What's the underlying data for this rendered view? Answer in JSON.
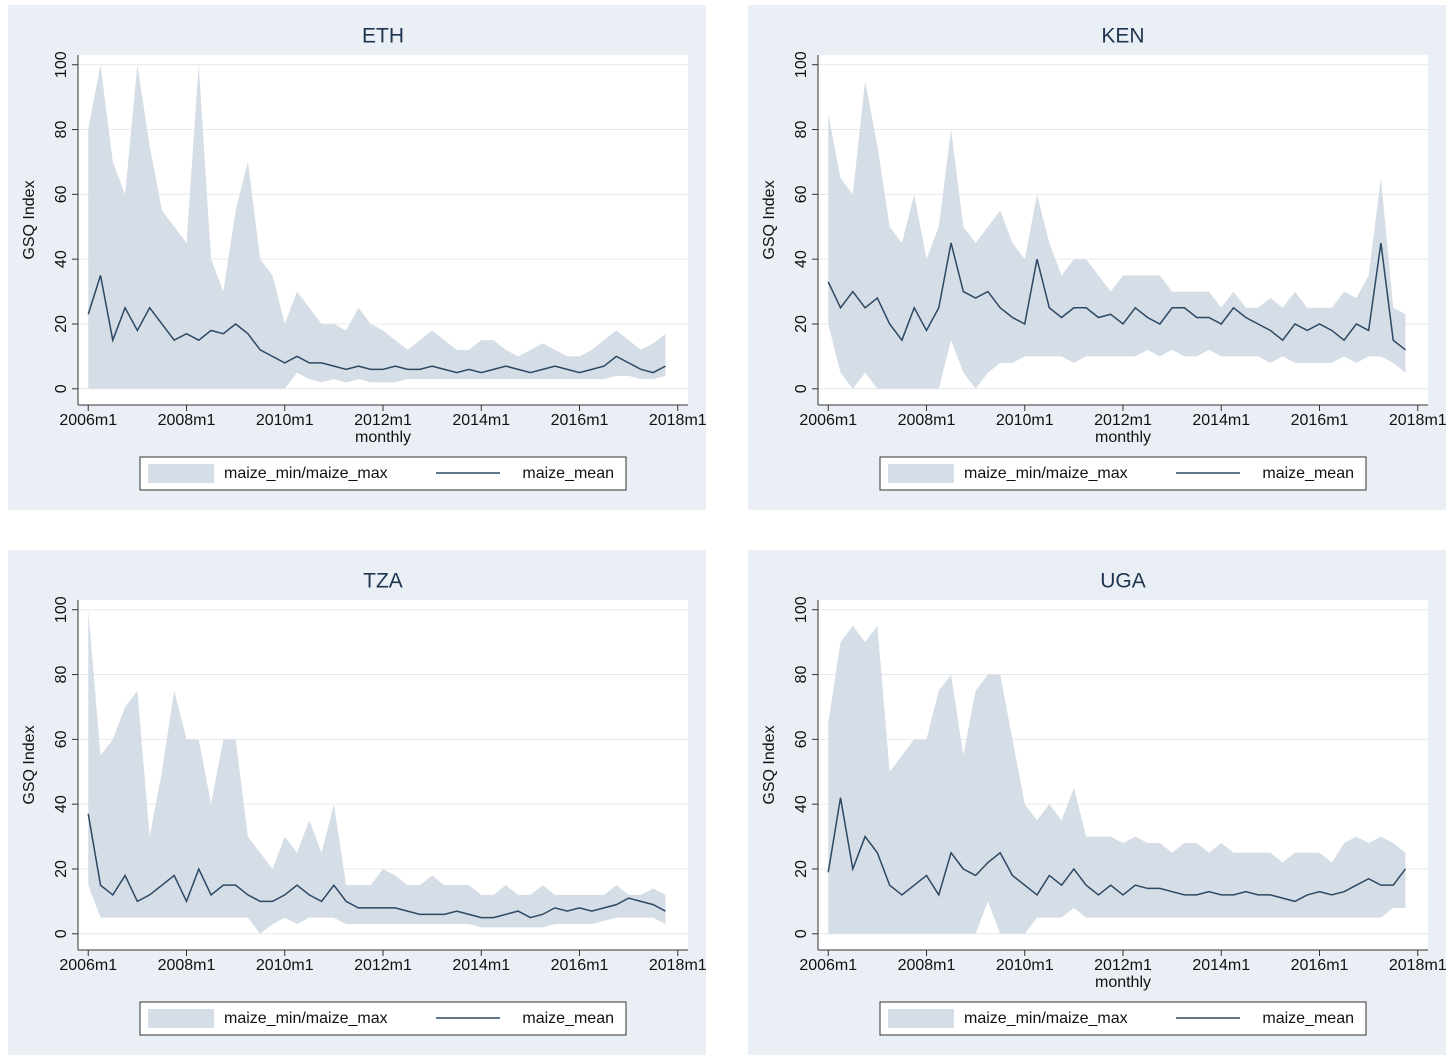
{
  "chart_data": [
    {
      "type": "range_line",
      "title": "ETH",
      "ylabel": "GSQ Index",
      "xlabel": "monthly",
      "x": [
        552,
        555,
        558,
        561,
        564,
        567,
        570,
        573,
        576,
        579,
        582,
        585,
        588,
        591,
        594,
        597,
        600,
        603,
        606,
        609,
        612,
        615,
        618,
        621,
        624,
        627,
        630,
        633,
        636,
        639,
        642,
        645,
        648,
        651,
        654,
        657,
        660,
        663,
        666,
        669,
        672,
        675,
        678,
        681,
        684,
        687,
        690,
        693
      ],
      "xlim": [
        549.5,
        698.5
      ],
      "ylim": [
        -5,
        103
      ],
      "xticks": [
        {
          "value": 552,
          "label": "2006m1"
        },
        {
          "value": 576,
          "label": "2008m1"
        },
        {
          "value": 600,
          "label": "2010m1"
        },
        {
          "value": 624,
          "label": "2012m1"
        },
        {
          "value": 648,
          "label": "2014m1"
        },
        {
          "value": 672,
          "label": "2016m1"
        },
        {
          "value": 696,
          "label": "2018m1"
        }
      ],
      "yticks": [
        0,
        20,
        40,
        60,
        80,
        100
      ],
      "grid": true,
      "series": [
        {
          "name": "maize_min/maize_max",
          "color": "#d5dde6",
          "low": [
            0,
            0,
            0,
            0,
            0,
            0,
            0,
            0,
            0,
            0,
            0,
            0,
            0,
            0,
            0,
            0,
            0,
            5,
            3,
            2,
            3,
            2,
            3,
            2,
            2,
            2,
            3,
            3,
            3,
            3,
            3,
            3,
            3,
            3,
            3,
            3,
            3,
            3,
            3,
            3,
            3,
            3,
            3,
            4,
            4,
            3,
            3,
            4
          ],
          "high": [
            80,
            100,
            70,
            60,
            100,
            75,
            55,
            50,
            45,
            100,
            40,
            30,
            55,
            70,
            40,
            35,
            20,
            30,
            25,
            20,
            20,
            18,
            25,
            20,
            18,
            15,
            12,
            15,
            18,
            15,
            12,
            12,
            15,
            15,
            12,
            10,
            12,
            14,
            12,
            10,
            10,
            12,
            15,
            18,
            15,
            12,
            14,
            17
          ]
        },
        {
          "name": "maize_mean",
          "color": "#2d4863",
          "values": [
            23,
            35,
            15,
            25,
            18,
            25,
            20,
            15,
            17,
            15,
            18,
            17,
            20,
            17,
            12,
            10,
            8,
            10,
            8,
            8,
            7,
            6,
            7,
            6,
            6,
            7,
            6,
            6,
            7,
            6,
            5,
            6,
            5,
            6,
            7,
            6,
            5,
            6,
            7,
            6,
            5,
            6,
            7,
            10,
            8,
            6,
            5,
            7
          ]
        }
      ]
    },
    {
      "type": "range_line",
      "title": "KEN",
      "ylabel": "GSQ Index",
      "xlabel": "monthly",
      "x": [
        552,
        555,
        558,
        561,
        564,
        567,
        570,
        573,
        576,
        579,
        582,
        585,
        588,
        591,
        594,
        597,
        600,
        603,
        606,
        609,
        612,
        615,
        618,
        621,
        624,
        627,
        630,
        633,
        636,
        639,
        642,
        645,
        648,
        651,
        654,
        657,
        660,
        663,
        666,
        669,
        672,
        675,
        678,
        681,
        684,
        687,
        690,
        693
      ],
      "xlim": [
        549.5,
        698.5
      ],
      "ylim": [
        -5,
        103
      ],
      "xticks": [
        {
          "value": 552,
          "label": "2006m1"
        },
        {
          "value": 576,
          "label": "2008m1"
        },
        {
          "value": 600,
          "label": "2010m1"
        },
        {
          "value": 624,
          "label": "2012m1"
        },
        {
          "value": 648,
          "label": "2014m1"
        },
        {
          "value": 672,
          "label": "2016m1"
        },
        {
          "value": 696,
          "label": "2018m1"
        }
      ],
      "yticks": [
        0,
        20,
        40,
        60,
        80,
        100
      ],
      "grid": true,
      "series": [
        {
          "name": "maize_min/maize_max",
          "color": "#d5dde6",
          "low": [
            20,
            5,
            0,
            5,
            0,
            0,
            0,
            0,
            0,
            0,
            15,
            5,
            0,
            5,
            8,
            8,
            10,
            10,
            10,
            10,
            8,
            10,
            10,
            10,
            10,
            10,
            12,
            10,
            12,
            10,
            10,
            12,
            10,
            10,
            10,
            10,
            8,
            10,
            8,
            8,
            8,
            8,
            10,
            8,
            10,
            10,
            8,
            5
          ],
          "high": [
            85,
            65,
            60,
            95,
            75,
            50,
            45,
            60,
            40,
            50,
            80,
            50,
            45,
            50,
            55,
            45,
            40,
            60,
            45,
            35,
            40,
            40,
            35,
            30,
            35,
            35,
            35,
            35,
            30,
            30,
            30,
            30,
            25,
            30,
            25,
            25,
            28,
            25,
            30,
            25,
            25,
            25,
            30,
            28,
            35,
            65,
            25,
            23
          ]
        },
        {
          "name": "maize_mean",
          "color": "#2d4863",
          "values": [
            33,
            25,
            30,
            25,
            28,
            20,
            15,
            25,
            18,
            25,
            45,
            30,
            28,
            30,
            25,
            22,
            20,
            40,
            25,
            22,
            25,
            25,
            22,
            23,
            20,
            25,
            22,
            20,
            25,
            25,
            22,
            22,
            20,
            25,
            22,
            20,
            18,
            15,
            20,
            18,
            20,
            18,
            15,
            20,
            18,
            45,
            15,
            12
          ]
        }
      ]
    },
    {
      "type": "range_line",
      "title": "TZA",
      "ylabel": "GSQ Index",
      "x": [
        552,
        555,
        558,
        561,
        564,
        567,
        570,
        573,
        576,
        579,
        582,
        585,
        588,
        591,
        594,
        597,
        600,
        603,
        606,
        609,
        612,
        615,
        618,
        621,
        624,
        627,
        630,
        633,
        636,
        639,
        642,
        645,
        648,
        651,
        654,
        657,
        660,
        663,
        666,
        669,
        672,
        675,
        678,
        681,
        684,
        687,
        690,
        693
      ],
      "xlim": [
        549.5,
        698.5
      ],
      "ylim": [
        -5,
        103
      ],
      "xticks": [
        {
          "value": 552,
          "label": "2006m1"
        },
        {
          "value": 576,
          "label": "2008m1"
        },
        {
          "value": 600,
          "label": "2010m1"
        },
        {
          "value": 624,
          "label": "2012m1"
        },
        {
          "value": 648,
          "label": "2014m1"
        },
        {
          "value": 672,
          "label": "2016m1"
        },
        {
          "value": 696,
          "label": "2018m1"
        }
      ],
      "yticks": [
        0,
        20,
        40,
        60,
        80,
        100
      ],
      "grid": true,
      "series": [
        {
          "name": "maize_min/maize_max",
          "color": "#d5dde6",
          "low": [
            15,
            5,
            5,
            5,
            5,
            5,
            5,
            5,
            5,
            5,
            5,
            5,
            5,
            5,
            0,
            3,
            5,
            3,
            5,
            5,
            5,
            3,
            3,
            3,
            3,
            3,
            3,
            3,
            3,
            3,
            3,
            3,
            2,
            2,
            2,
            2,
            2,
            2,
            3,
            3,
            3,
            3,
            4,
            5,
            5,
            5,
            5,
            3
          ],
          "high": [
            100,
            55,
            60,
            70,
            75,
            30,
            50,
            75,
            60,
            60,
            40,
            60,
            60,
            30,
            25,
            20,
            30,
            25,
            35,
            25,
            40,
            15,
            15,
            15,
            20,
            18,
            15,
            15,
            18,
            15,
            15,
            15,
            12,
            12,
            15,
            12,
            12,
            15,
            12,
            12,
            12,
            12,
            12,
            15,
            12,
            12,
            14,
            12
          ]
        },
        {
          "name": "maize_mean",
          "color": "#2d4863",
          "values": [
            37,
            15,
            12,
            18,
            10,
            12,
            15,
            18,
            10,
            20,
            12,
            15,
            15,
            12,
            10,
            10,
            12,
            15,
            12,
            10,
            15,
            10,
            8,
            8,
            8,
            8,
            7,
            6,
            6,
            6,
            7,
            6,
            5,
            5,
            6,
            7,
            5,
            6,
            8,
            7,
            8,
            7,
            8,
            9,
            11,
            10,
            9,
            7
          ]
        }
      ]
    },
    {
      "type": "range_line",
      "title": "UGA",
      "ylabel": "GSQ Index",
      "xlabel": "monthly",
      "x": [
        552,
        555,
        558,
        561,
        564,
        567,
        570,
        573,
        576,
        579,
        582,
        585,
        588,
        591,
        594,
        597,
        600,
        603,
        606,
        609,
        612,
        615,
        618,
        621,
        624,
        627,
        630,
        633,
        636,
        639,
        642,
        645,
        648,
        651,
        654,
        657,
        660,
        663,
        666,
        669,
        672,
        675,
        678,
        681,
        684,
        687,
        690,
        693
      ],
      "xlim": [
        549.5,
        698.5
      ],
      "ylim": [
        -5,
        103
      ],
      "xticks": [
        {
          "value": 552,
          "label": "2006m1"
        },
        {
          "value": 576,
          "label": "2008m1"
        },
        {
          "value": 600,
          "label": "2010m1"
        },
        {
          "value": 624,
          "label": "2012m1"
        },
        {
          "value": 648,
          "label": "2014m1"
        },
        {
          "value": 672,
          "label": "2016m1"
        },
        {
          "value": 696,
          "label": "2018m1"
        }
      ],
      "yticks": [
        0,
        20,
        40,
        60,
        80,
        100
      ],
      "grid": true,
      "series": [
        {
          "name": "maize_min/maize_max",
          "color": "#d5dde6",
          "low": [
            0,
            0,
            0,
            0,
            0,
            0,
            0,
            0,
            0,
            0,
            0,
            0,
            0,
            10,
            0,
            0,
            0,
            5,
            5,
            5,
            8,
            5,
            5,
            5,
            5,
            5,
            5,
            5,
            5,
            5,
            5,
            5,
            5,
            5,
            5,
            5,
            5,
            5,
            5,
            5,
            5,
            5,
            5,
            5,
            5,
            5,
            8,
            8
          ],
          "high": [
            65,
            90,
            95,
            90,
            95,
            50,
            55,
            60,
            60,
            75,
            80,
            55,
            75,
            80,
            80,
            60,
            40,
            35,
            40,
            35,
            45,
            30,
            30,
            30,
            28,
            30,
            28,
            28,
            25,
            28,
            28,
            25,
            28,
            25,
            25,
            25,
            25,
            22,
            25,
            25,
            25,
            22,
            28,
            30,
            28,
            30,
            28,
            25
          ]
        },
        {
          "name": "maize_mean",
          "color": "#2d4863",
          "values": [
            19,
            42,
            20,
            30,
            25,
            15,
            12,
            15,
            18,
            12,
            25,
            20,
            18,
            22,
            25,
            18,
            15,
            12,
            18,
            15,
            20,
            15,
            12,
            15,
            12,
            15,
            14,
            14,
            13,
            12,
            12,
            13,
            12,
            12,
            13,
            12,
            12,
            11,
            10,
            12,
            13,
            12,
            13,
            15,
            17,
            15,
            15,
            20
          ]
        }
      ]
    }
  ]
}
